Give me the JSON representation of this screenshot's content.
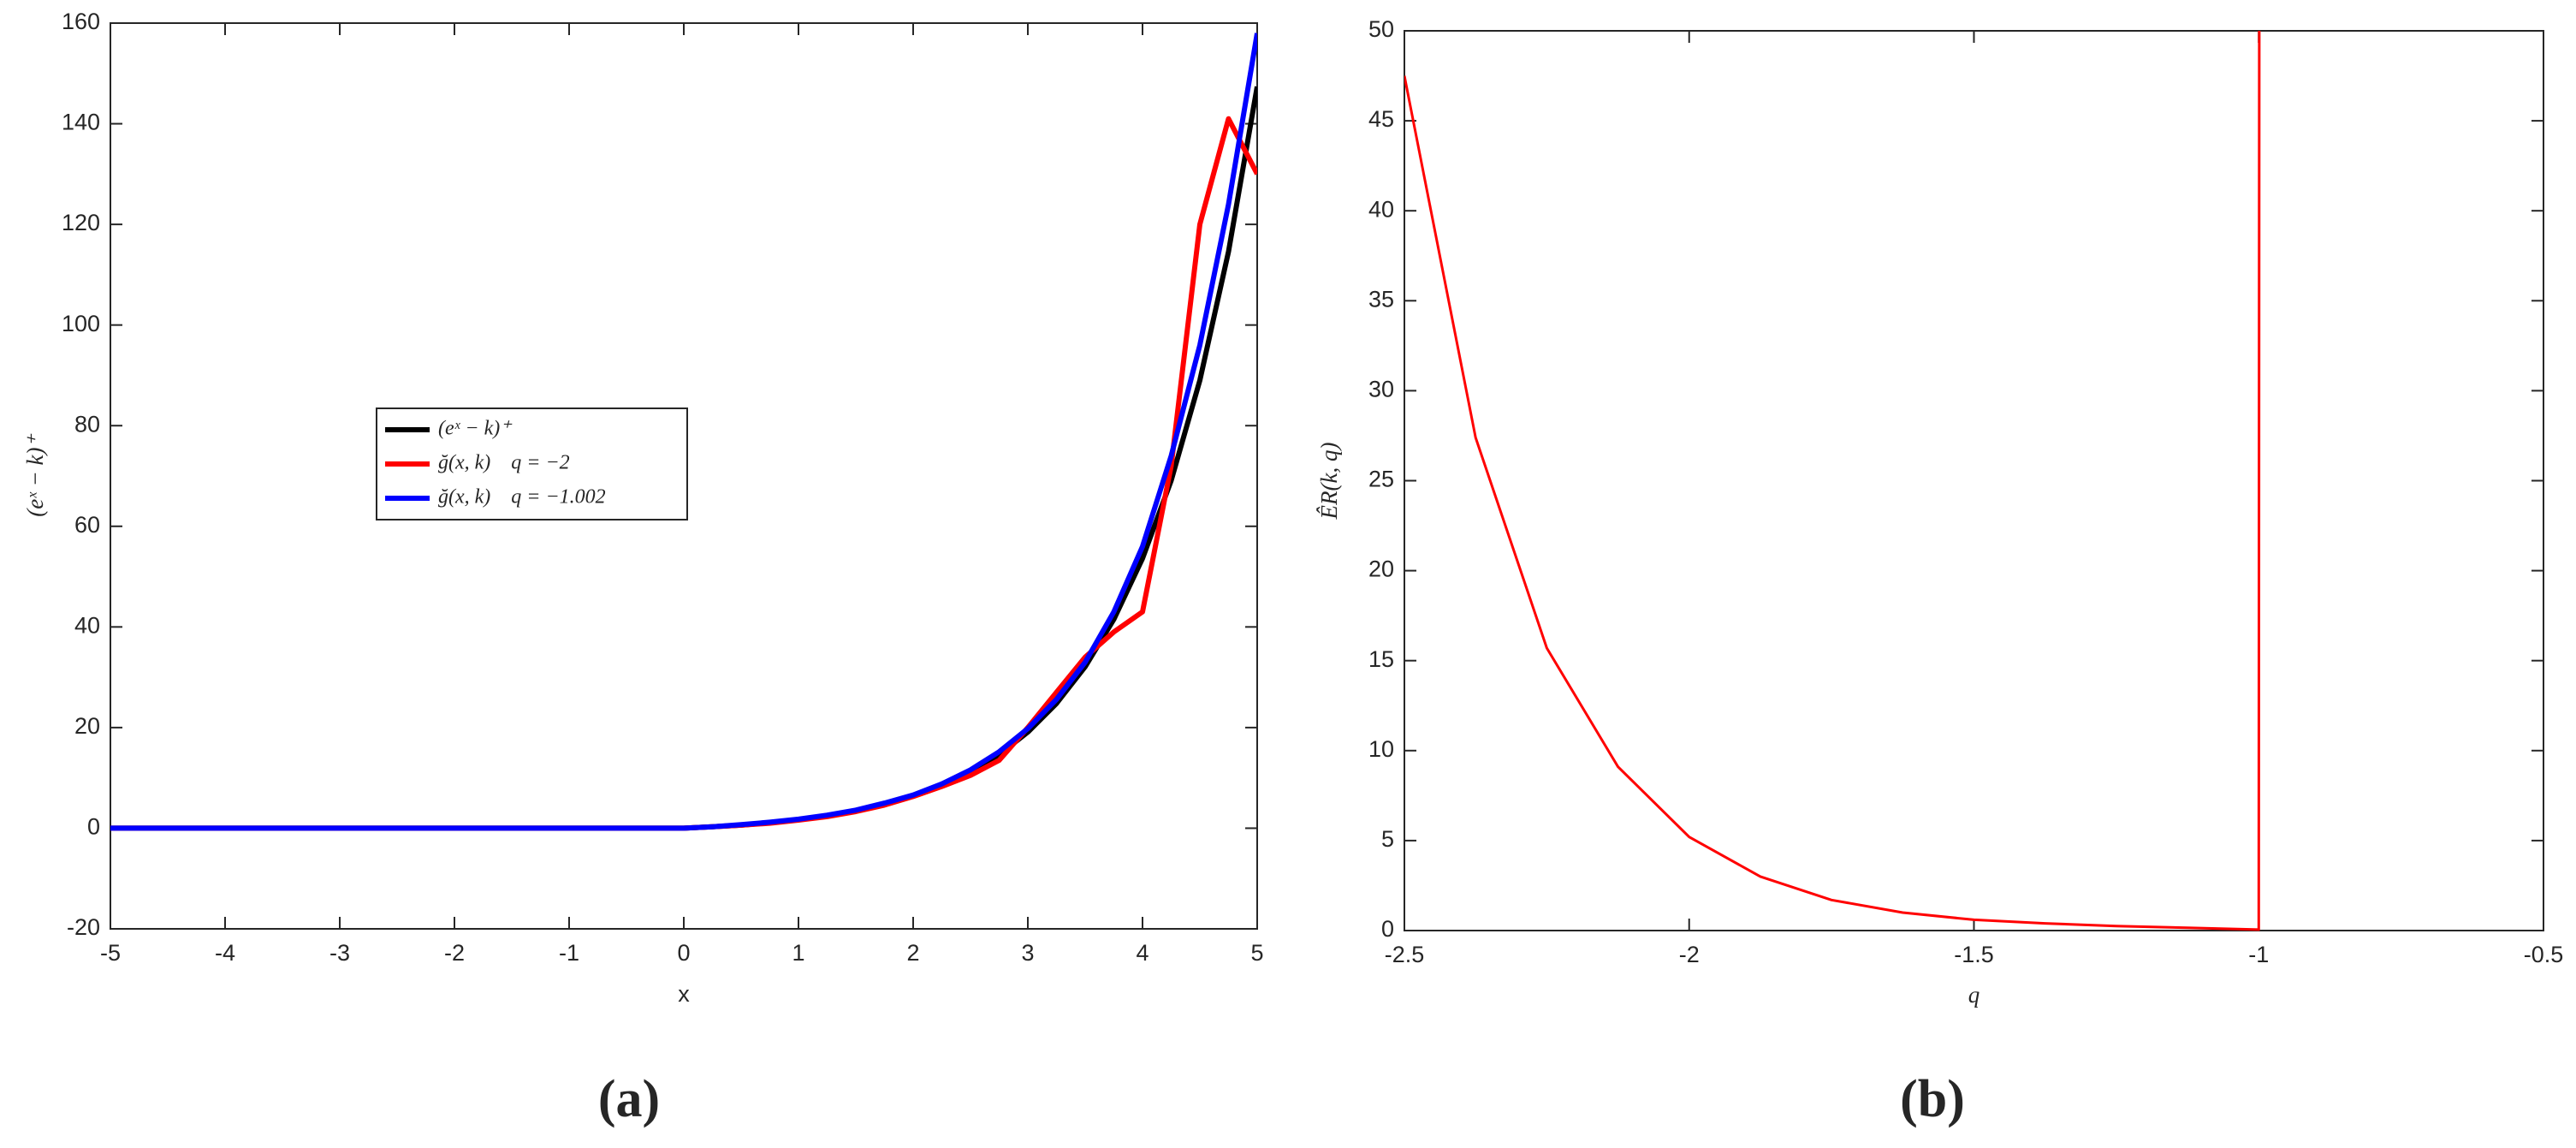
{
  "chart_data": [
    {
      "type": "line",
      "x_label": "x",
      "y_label": "(eˣ − k)⁺",
      "caption": "(a)",
      "xlim": [
        -5,
        5
      ],
      "xticks": [
        -5,
        -4,
        -3,
        -2,
        -1,
        0,
        1,
        2,
        3,
        4,
        5
      ],
      "ylim": [
        -20,
        160
      ],
      "yticks": [
        -20,
        0,
        20,
        40,
        60,
        80,
        100,
        120,
        140,
        160
      ],
      "legend": "center left",
      "x": [
        -5,
        -4.5,
        -4,
        -3.5,
        -3,
        -2.5,
        -2,
        -1.5,
        -1,
        -0.5,
        0,
        0.25,
        0.5,
        0.75,
        1,
        1.25,
        1.5,
        1.75,
        2,
        2.25,
        2.5,
        2.75,
        3,
        3.25,
        3.5,
        3.75,
        4,
        4.25,
        4.5,
        4.75,
        5
      ],
      "series": [
        {
          "name": "(eˣ − k)⁺",
          "color": "#000000",
          "values": [
            0,
            0,
            0,
            0,
            0,
            0,
            0,
            0,
            0,
            0,
            0,
            0.3,
            0.6,
            1.1,
            1.7,
            2.5,
            3.5,
            4.8,
            6.4,
            8.5,
            11.2,
            14.6,
            19.1,
            24.8,
            32.1,
            41.5,
            53.6,
            69.1,
            89.0,
            114.6,
            147.4
          ]
        },
        {
          "name": "ğ(x, k)    q = −2",
          "color": "#ff0000",
          "values": [
            0,
            0,
            0,
            0,
            0,
            0,
            0,
            0,
            0,
            0,
            0,
            0.3,
            0.6,
            1.0,
            1.6,
            2.3,
            3.3,
            4.6,
            6.3,
            8.3,
            10.5,
            13.5,
            20.0,
            27.0,
            34.0,
            39.0,
            43.0,
            72.0,
            120.0,
            141.0,
            130.0
          ]
        },
        {
          "name": "ğ(x, k)    q = −1.002",
          "color": "#0000ff",
          "values": [
            0,
            0,
            0,
            0,
            0,
            0,
            0,
            0,
            0,
            0,
            0,
            0.3,
            0.7,
            1.2,
            1.8,
            2.6,
            3.6,
            5.0,
            6.6,
            8.8,
            11.6,
            15.2,
            19.8,
            25.6,
            33.0,
            43.0,
            56.0,
            74.0,
            96.0,
            124.0,
            158.0
          ]
        }
      ]
    },
    {
      "type": "line",
      "x_label": "q",
      "y_label": "ÊR(k, q)",
      "caption": "(b)",
      "xlim": [
        -2.5,
        -0.5
      ],
      "xticks": [
        -2.5,
        -2,
        -1.5,
        -1,
        -0.5
      ],
      "ylim": [
        0,
        50
      ],
      "yticks": [
        0,
        5,
        10,
        15,
        20,
        25,
        30,
        35,
        40,
        45,
        50
      ],
      "x": [
        -2.5,
        -2.375,
        -2.25,
        -2.125,
        -2,
        -1.875,
        -1.75,
        -1.625,
        -1.5,
        -1.375,
        -1.25,
        -1.125,
        -1,
        -0.999
      ],
      "series": [
        {
          "color": "#ff0000",
          "values": [
            47.5,
            27.4,
            15.7,
            9.1,
            5.2,
            3.0,
            1.7,
            1.0,
            0.6,
            0.4,
            0.25,
            0.15,
            0.05,
            50
          ]
        }
      ]
    }
  ]
}
